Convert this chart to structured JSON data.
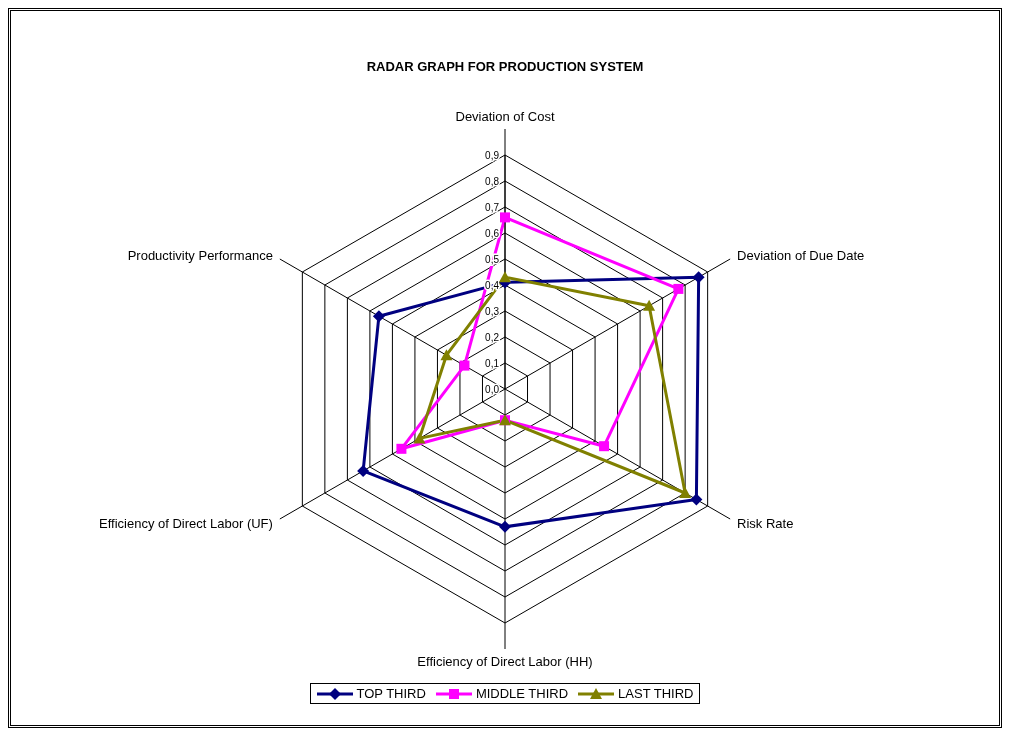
{
  "chart_data": {
    "type": "radar",
    "title": "RADAR GRAPH FOR PRODUCTION SYSTEM",
    "categories": [
      "Deviation of Cost",
      "Deviation of Due Date",
      "Risk Rate",
      "Efficiency of Direct Labor (HH)",
      "Efficiency of Direct Labor (UF)",
      "Productivity Performance"
    ],
    "series": [
      {
        "name": "TOP THIRD",
        "color": "#000080",
        "marker": "diamond",
        "values": [
          0.41,
          0.86,
          0.85,
          0.53,
          0.63,
          0.56
        ]
      },
      {
        "name": "MIDDLE THIRD",
        "color": "#ff00ff",
        "marker": "square",
        "values": [
          0.66,
          0.77,
          0.44,
          0.12,
          0.46,
          0.18
        ]
      },
      {
        "name": "LAST THIRD",
        "color": "#808000",
        "marker": "triangle",
        "values": [
          0.43,
          0.64,
          0.8,
          0.12,
          0.38,
          0.26
        ]
      }
    ],
    "ylim": [
      0,
      0.9
    ],
    "yticks": [
      {
        "value": 0,
        "label": "0,0"
      },
      {
        "value": 0.1,
        "label": "0,1"
      },
      {
        "value": 0.2,
        "label": "0,2"
      },
      {
        "value": 0.3,
        "label": "0,3"
      },
      {
        "value": 0.4,
        "label": "0,4"
      },
      {
        "value": 0.5,
        "label": "0,5"
      },
      {
        "value": 0.6,
        "label": "0,6"
      },
      {
        "value": 0.7,
        "label": "0,7"
      },
      {
        "value": 0.8,
        "label": "0,8"
      },
      {
        "value": 0.9,
        "label": "0,9"
      }
    ],
    "grid": true,
    "legend": "bottom",
    "line_style": "solid"
  }
}
